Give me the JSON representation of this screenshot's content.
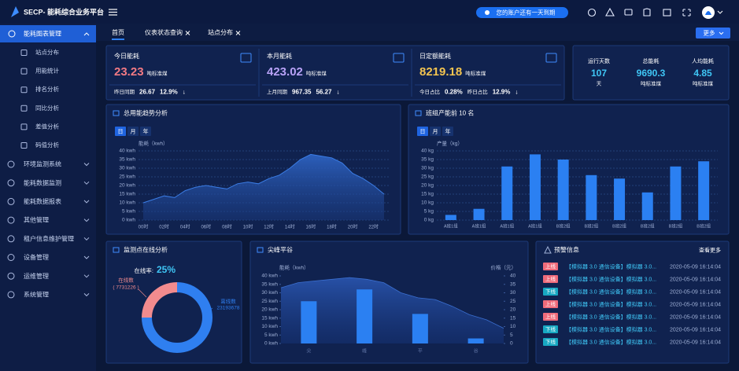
{
  "header": {
    "logo": "SECP- 能耗综合业务平台",
    "notice": "您的账户还有一天到期"
  },
  "sidebar": {
    "active": "能耗图表管理",
    "sub": [
      "站点分布",
      "用能统计",
      "排名分析",
      "同比分析",
      "差值分析",
      "码值分析"
    ],
    "items": [
      "环境监测系统",
      "能耗数据监测",
      "能耗数据报表",
      "其他管理",
      "租户信息维护管理",
      "设备管理",
      "运维管理",
      "系统管理"
    ]
  },
  "tabs": {
    "items": [
      "首页",
      "仪表状态查询",
      "站点分布"
    ],
    "more": "更多"
  },
  "kpis": [
    {
      "title": "今日能耗",
      "value": "23.23",
      "unit": "吨标准煤",
      "color": "#f27a84",
      "foot": [
        "昨日同期",
        "26.67",
        "12.9%",
        "↓"
      ]
    },
    {
      "title": "本月能耗",
      "value": "423.02",
      "unit": "吨标准煤",
      "color": "#b8a2f7",
      "foot": [
        "上月同期",
        "967.35",
        "56.27",
        "↓"
      ]
    },
    {
      "title": "日定额能耗",
      "value": "8219.18",
      "unit": "吨标准煤",
      "color": "#f3c450",
      "foot": [
        "今日占比",
        "0.28%",
        "昨日占比",
        "12.9%",
        "↓"
      ]
    }
  ],
  "stats": [
    {
      "label": "运行天数",
      "value": "107",
      "unit": "天"
    },
    {
      "label": "总能耗",
      "value": "9690.3",
      "unit": "吨标准煤"
    },
    {
      "label": "人均能耗",
      "value": "4.85",
      "unit": "吨标准煤"
    }
  ],
  "chart_data": [
    {
      "type": "area",
      "title": "总用能趋势分析",
      "buttons": [
        "日",
        "月",
        "年"
      ],
      "y_label": "能耗（kwh）",
      "categories": [
        "00时",
        null,
        "02时",
        null,
        "04时",
        null,
        "06时",
        null,
        "08时",
        null,
        "10时",
        null,
        "12时",
        null,
        "14时",
        null,
        "16时",
        null,
        "18时",
        null,
        "20时",
        null,
        "22时",
        null
      ],
      "values": [
        10,
        12,
        14,
        13,
        17,
        19,
        20,
        19,
        18,
        21,
        22,
        21,
        24,
        26,
        30,
        35,
        38,
        37,
        36,
        33,
        27,
        24,
        20,
        15
      ],
      "color": "#3b7de6",
      "ylim": [
        0,
        40
      ],
      "yticks": [
        {
          "value": 0,
          "label": "0 kwh"
        },
        {
          "value": 5,
          "label": "5 kwh"
        },
        {
          "value": 10,
          "label": "10 kwh"
        },
        {
          "value": 15,
          "label": "15 kwh"
        },
        {
          "value": 20,
          "label": "20 kwh"
        },
        {
          "value": 25,
          "label": "25 kwh"
        },
        {
          "value": 30,
          "label": "30 kwh"
        },
        {
          "value": 35,
          "label": "35 kwh"
        },
        {
          "value": 40,
          "label": "40 kwh"
        }
      ],
      "grid": true
    },
    {
      "type": "bar",
      "title": "班组产能前 10 名",
      "buttons": [
        "日",
        "月",
        "年"
      ],
      "y_label": "产量（kg）",
      "categories": [
        "A班1组",
        "A班1组",
        "A班1组",
        "A班1组",
        "B班2组",
        "B班2组",
        "B班2组",
        "B班2组",
        "B班2组",
        "B班2组"
      ],
      "values": [
        3,
        6.5,
        31,
        38,
        35,
        26,
        24,
        16,
        31,
        34
      ],
      "color": "#2b80f2",
      "ylim": [
        0,
        40
      ],
      "yticks": [
        {
          "value": 0,
          "label": "0 kg"
        },
        {
          "value": 5,
          "label": "5 kg"
        },
        {
          "value": 10,
          "label": "10 kg"
        },
        {
          "value": 15,
          "label": "15 kg"
        },
        {
          "value": 20,
          "label": "20 kg"
        },
        {
          "value": 25,
          "label": "25 kg"
        },
        {
          "value": 30,
          "label": "30 kg"
        },
        {
          "value": 35,
          "label": "35 kg"
        },
        {
          "value": 40,
          "label": "40 kg"
        }
      ],
      "grid": true
    },
    {
      "type": "pie",
      "title": "监测点在线分析",
      "rate_label": "在线率:",
      "rate": "25%",
      "categories": [
        "在线数",
        "离线数"
      ],
      "values": [
        7731226,
        23193678
      ],
      "value_labels": [
        "( 7731226 )",
        "23193678"
      ],
      "colors": [
        "#f28b8e",
        "#2f7ff0"
      ]
    },
    {
      "type": "combo",
      "title": "尖峰平谷",
      "y_label": "能耗（kwh）",
      "y2_label": "价格（元）",
      "categories": [
        "尖",
        "峰",
        "平",
        "谷"
      ],
      "values": [
        25,
        32,
        17.5,
        3
      ],
      "color": "#2b80f2",
      "price": {
        "axis": "y2",
        "color": "#2a56b0",
        "values": [
          33,
          36,
          37,
          38,
          39,
          38,
          36,
          30,
          27,
          26,
          22,
          17,
          14,
          9
        ]
      },
      "ylim": [
        0,
        40
      ],
      "yticks": [
        {
          "value": 0,
          "label": "0 kwh"
        },
        {
          "value": 5,
          "label": "5 kwh"
        },
        {
          "value": 10,
          "label": "10 kwh"
        },
        {
          "value": 15,
          "label": "15 kwh"
        },
        {
          "value": 20,
          "label": "20 kwh"
        },
        {
          "value": 25,
          "label": "25 kwh"
        },
        {
          "value": 30,
          "label": "30 kwh"
        },
        {
          "value": 35,
          "label": "35 kwh"
        },
        {
          "value": 40,
          "label": "40 kwh"
        }
      ],
      "y2lim": [
        0,
        40
      ],
      "y2ticks": [
        0,
        5,
        10,
        15,
        20,
        25,
        30,
        35,
        40
      ],
      "grid": false
    }
  ],
  "alerts": {
    "title": "预警信息",
    "more": "查看更多",
    "tag_colors": {
      "上线": "#ef6b7a",
      "下线": "#17a8c2"
    },
    "rows": [
      {
        "tag": "上线",
        "text": "【模拟器 3.0 通信设备】模拟器 3.0...",
        "time": "2020-05-09 16:14:04"
      },
      {
        "tag": "上线",
        "text": "【模拟器 3.0 通信设备】模拟器 3.0...",
        "time": "2020-05-09 16:14:04"
      },
      {
        "tag": "下线",
        "text": "【模拟器 3.0 通信设备】模拟器 3.0...",
        "time": "2020-05-09 16:14:04"
      },
      {
        "tag": "上线",
        "text": "【模拟器 3.0 通信设备】模拟器 3.0...",
        "time": "2020-05-09 16:14:04"
      },
      {
        "tag": "上线",
        "text": "【模拟器 3.0 通信设备】模拟器 3.0...",
        "time": "2020-05-09 16:14:04"
      },
      {
        "tag": "下线",
        "text": "【模拟器 3.0 通信设备】模拟器 3.0...",
        "time": "2020-05-09 16:14:04"
      },
      {
        "tag": "下线",
        "text": "【模拟器 3.0 通信设备】模拟器 3.0...",
        "time": "2020-05-09 16:14:04"
      }
    ]
  }
}
